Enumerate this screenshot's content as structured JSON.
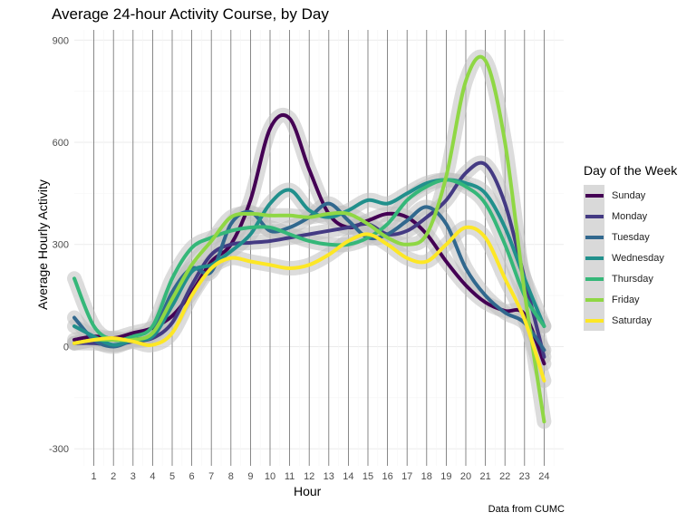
{
  "chart_data": {
    "type": "line",
    "title": "Average 24-hour Activity Course, by Day",
    "xlabel": "Hour",
    "ylabel": "Average Hourly Activity",
    "caption": "Data from CUMC",
    "legend_title": "Day of the Week",
    "legend_position": "right",
    "grid": true,
    "xlim": [
      0,
      25
    ],
    "ylim": [
      -350,
      930
    ],
    "x_ticks": [
      1,
      2,
      3,
      4,
      5,
      6,
      7,
      8,
      9,
      10,
      11,
      12,
      13,
      14,
      15,
      16,
      17,
      18,
      19,
      20,
      21,
      22,
      23,
      24
    ],
    "y_ticks": [
      -300,
      0,
      300,
      600,
      900
    ],
    "x": [
      0,
      1,
      2,
      3,
      4,
      5,
      6,
      7,
      8,
      9,
      10,
      11,
      12,
      13,
      14,
      15,
      16,
      17,
      18,
      19,
      20,
      21,
      22,
      23,
      24
    ],
    "series": [
      {
        "name": "Sunday",
        "color": "#440154",
        "values": [
          20,
          30,
          25,
          40,
          55,
          90,
          160,
          250,
          300,
          430,
          640,
          670,
          520,
          390,
          350,
          370,
          390,
          380,
          330,
          250,
          180,
          130,
          105,
          95,
          -50
        ]
      },
      {
        "name": "Monday",
        "color": "#443a83",
        "values": [
          10,
          10,
          5,
          15,
          25,
          70,
          180,
          270,
          300,
          305,
          310,
          320,
          330,
          340,
          350,
          360,
          330,
          340,
          380,
          430,
          510,
          535,
          420,
          200,
          -30
        ]
      },
      {
        "name": "Tuesday",
        "color": "#31688e",
        "values": [
          85,
          20,
          0,
          20,
          40,
          160,
          230,
          220,
          360,
          395,
          340,
          350,
          380,
          420,
          370,
          320,
          330,
          370,
          410,
          360,
          230,
          150,
          100,
          70,
          -10
        ]
      },
      {
        "name": "Wednesday",
        "color": "#21908c",
        "values": [
          60,
          30,
          5,
          20,
          30,
          120,
          220,
          240,
          280,
          330,
          420,
          460,
          400,
          380,
          400,
          430,
          420,
          450,
          480,
          490,
          480,
          450,
          350,
          200,
          60
        ]
      },
      {
        "name": "Thursday",
        "color": "#35b779",
        "values": [
          200,
          60,
          20,
          30,
          60,
          200,
          290,
          320,
          340,
          350,
          350,
          330,
          310,
          300,
          300,
          320,
          360,
          430,
          470,
          490,
          470,
          420,
          300,
          150,
          60
        ]
      },
      {
        "name": "Friday",
        "color": "#8fd744",
        "values": [
          10,
          20,
          20,
          20,
          40,
          140,
          240,
          310,
          380,
          390,
          385,
          385,
          380,
          390,
          390,
          360,
          320,
          300,
          330,
          500,
          780,
          840,
          600,
          160,
          -220
        ]
      },
      {
        "name": "Saturday",
        "color": "#fde725",
        "values": [
          10,
          20,
          25,
          15,
          5,
          40,
          150,
          230,
          260,
          250,
          240,
          230,
          240,
          270,
          310,
          330,
          300,
          260,
          250,
          300,
          350,
          320,
          200,
          80,
          -100
        ]
      }
    ]
  },
  "colors": {
    "grid_major": "#ebebeb",
    "grid_minor": "#f5f5f5",
    "ribbon": "#bfbfbf",
    "vline": "#6b6b6b",
    "legend_key_bg": "#d9d9d9"
  }
}
